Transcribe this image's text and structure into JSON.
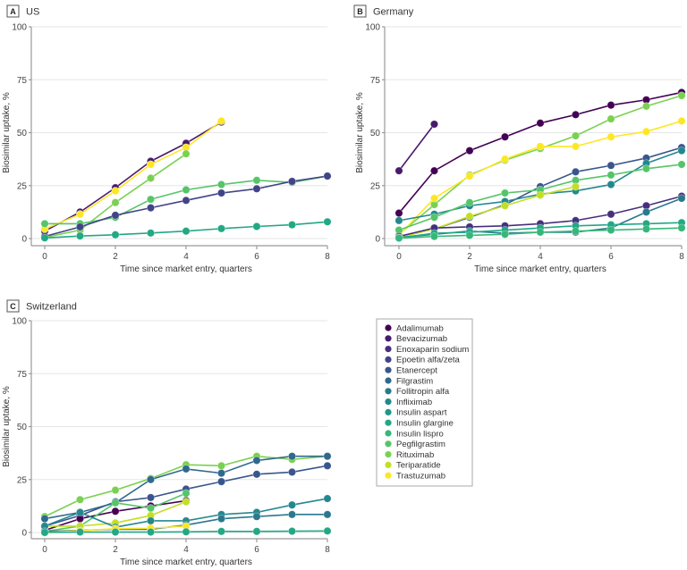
{
  "figure": {
    "legend_entries": [
      {
        "name": "Adalimumab",
        "color": "#440154"
      },
      {
        "name": "Bevacizumab",
        "color": "#481a6c"
      },
      {
        "name": "Enoxaparin sodium",
        "color": "#472f7d"
      },
      {
        "name": "Epoetin alfa/zeta",
        "color": "#414487"
      },
      {
        "name": "Etanercept",
        "color": "#39568c"
      },
      {
        "name": "Filgrastim",
        "color": "#31688e"
      },
      {
        "name": "Follitropin alfa",
        "color": "#2a788e"
      },
      {
        "name": "Infliximab",
        "color": "#23888e"
      },
      {
        "name": "Insulin aspart",
        "color": "#1f988b"
      },
      {
        "name": "Insulin glargine",
        "color": "#22a884"
      },
      {
        "name": "Insulin lispro",
        "color": "#35b779"
      },
      {
        "name": "Pegfilgrastim",
        "color": "#54c568"
      },
      {
        "name": "Rituximab",
        "color": "#7ad151"
      },
      {
        "name": "Teriparatide",
        "color": "#c2df23"
      },
      {
        "name": "Trastuzumab",
        "color": "#fde725"
      }
    ]
  },
  "chart_data": [
    {
      "type": "line",
      "panel_letter": "A",
      "title": "US",
      "xlabel": "Time since market entry, quarters",
      "ylabel": "Biosimilar uptake, %",
      "xlim": [
        0,
        8
      ],
      "ylim": [
        0,
        100
      ],
      "xticks": [
        "0",
        "2",
        "4",
        "6",
        "8"
      ],
      "yticks": [
        "0",
        "25",
        "50",
        "75",
        "100"
      ],
      "grid": true,
      "series": [
        {
          "name": "Bevacizumab",
          "x": [
            0,
            1,
            2,
            3,
            4,
            5
          ],
          "values": [
            3.5,
            12.5,
            24,
            36.5,
            45,
            55
          ]
        },
        {
          "name": "Trastuzumab",
          "x": [
            0,
            1,
            2,
            3,
            4,
            5
          ],
          "values": [
            4.5,
            11.5,
            22.5,
            35,
            43,
            55.5
          ]
        },
        {
          "name": "Rituximab",
          "x": [
            0,
            1,
            2,
            3,
            4
          ],
          "values": [
            0.5,
            4,
            17,
            28.5,
            40
          ]
        },
        {
          "name": "Pegfilgrastim",
          "x": [
            0,
            1,
            2,
            3,
            4,
            5,
            6,
            7,
            8
          ],
          "values": [
            7,
            7,
            10,
            18.5,
            23,
            25.5,
            27.5,
            26.5,
            29.5
          ]
        },
        {
          "name": "Epoetin alfa/zeta",
          "x": [
            0,
            1,
            2,
            3,
            4,
            5,
            6,
            7,
            8
          ],
          "values": [
            1,
            5.5,
            11,
            14.5,
            18,
            21.5,
            23.5,
            27,
            29.5
          ]
        },
        {
          "name": "Insulin glargine",
          "x": [
            0,
            1,
            2,
            3,
            4,
            5,
            6,
            7,
            8
          ],
          "values": [
            0.3,
            1.2,
            1.8,
            2.6,
            3.5,
            4.7,
            5.7,
            6.5,
            7.9
          ]
        }
      ]
    },
    {
      "type": "line",
      "panel_letter": "B",
      "title": "Germany",
      "xlabel": "Time since market entry, quarters",
      "ylabel": "Biosimilar uptake, %",
      "xlim": [
        0,
        8
      ],
      "ylim": [
        0,
        100
      ],
      "xticks": [
        "0",
        "2",
        "4",
        "6",
        "8"
      ],
      "yticks": [
        "0",
        "25",
        "50",
        "75",
        "100"
      ],
      "grid": true,
      "series": [
        {
          "name": "Adalimumab",
          "x": [
            0,
            1,
            2,
            3,
            4,
            5,
            6,
            7,
            8
          ],
          "values": [
            12,
            32,
            41.5,
            48,
            54.5,
            58.5,
            63,
            65.5,
            69
          ]
        },
        {
          "name": "Bevacizumab",
          "x": [
            0,
            1
          ],
          "values": [
            32,
            54
          ]
        },
        {
          "name": "Rituximab",
          "x": [
            0,
            1,
            2,
            3,
            4,
            5,
            6,
            7,
            8
          ],
          "values": [
            2,
            16,
            30,
            37,
            42.5,
            48.5,
            56.5,
            62.5,
            67.5
          ]
        },
        {
          "name": "Trastuzumab",
          "x": [
            0,
            1,
            2,
            3,
            4,
            5,
            6,
            7,
            8
          ],
          "values": [
            1.5,
            19,
            29.5,
            37.5,
            43.5,
            43.5,
            48,
            50.5,
            55.5
          ]
        },
        {
          "name": "Etanercept",
          "x": [
            0,
            1,
            2,
            3,
            4,
            5,
            6,
            7,
            8
          ],
          "values": [
            1,
            4.5,
            10,
            16,
            24.5,
            31.5,
            34.5,
            38,
            43
          ]
        },
        {
          "name": "Infliximab",
          "x": [
            0,
            1,
            2,
            3,
            4,
            5,
            6,
            7,
            8
          ],
          "values": [
            8.5,
            11.5,
            15.5,
            17.5,
            21,
            22.5,
            25.5,
            35.5,
            41.5
          ]
        },
        {
          "name": "Pegfilgrastim",
          "x": [
            0,
            1,
            2,
            3,
            4,
            5,
            6,
            7,
            8
          ],
          "values": [
            4,
            10,
            17,
            21.5,
            23,
            27.5,
            30,
            33,
            35
          ]
        },
        {
          "name": "Teriparatide",
          "x": [
            0,
            1,
            2,
            3,
            4,
            5
          ],
          "values": [
            0.5,
            4.5,
            10.5,
            15.5,
            20.5,
            24.5
          ]
        },
        {
          "name": "Enoxaparin sodium",
          "x": [
            0,
            1,
            2,
            3,
            4,
            5,
            6,
            7,
            8
          ],
          "values": [
            1,
            5,
            5.5,
            6,
            7,
            8.5,
            11.5,
            15.5,
            20
          ]
        },
        {
          "name": "Follitropin alfa",
          "x": [
            0,
            1,
            2,
            3,
            4,
            5,
            6,
            7,
            8
          ],
          "values": [
            0.5,
            2,
            3.5,
            2.5,
            3,
            3,
            5,
            12.5,
            19
          ]
        },
        {
          "name": "Insulin glargine",
          "x": [
            0,
            1,
            2,
            3,
            4,
            5,
            6,
            7,
            8
          ],
          "values": [
            0.3,
            2.5,
            3,
            4,
            5,
            6,
            6.5,
            7,
            7.5
          ]
        },
        {
          "name": "Insulin lispro",
          "x": [
            0,
            1,
            2,
            3,
            4,
            5,
            6,
            7,
            8
          ],
          "values": [
            0.2,
            1,
            1.5,
            2,
            3,
            3.5,
            4,
            4.5,
            5
          ]
        }
      ]
    },
    {
      "type": "line",
      "panel_letter": "C",
      "title": "Switzerland",
      "xlabel": "Time since market entry, quarters",
      "ylabel": "Biosimilar uptake, %",
      "xlim": [
        0,
        8
      ],
      "ylim": [
        0,
        100
      ],
      "xticks": [
        "0",
        "2",
        "4",
        "6",
        "8"
      ],
      "yticks": [
        "0",
        "25",
        "50",
        "75",
        "100"
      ],
      "grid": true,
      "series": [
        {
          "name": "Rituximab",
          "x": [
            0,
            1,
            2,
            3,
            4,
            5,
            6,
            7,
            8
          ],
          "values": [
            7.5,
            15.5,
            20,
            25.5,
            32,
            31.5,
            36,
            34.5,
            36
          ]
        },
        {
          "name": "Etanercept",
          "x": [
            0,
            1,
            2,
            3,
            4,
            5,
            6,
            7,
            8
          ],
          "values": [
            3,
            8,
            14.5,
            16.5,
            20.5,
            24,
            27.5,
            28.5,
            31.5
          ]
        },
        {
          "name": "Filgrastim",
          "x": [
            0,
            1,
            2,
            3,
            4,
            5,
            6,
            7,
            8
          ],
          "values": [
            6.5,
            9.5,
            14,
            25,
            30,
            28,
            34,
            36,
            36
          ]
        },
        {
          "name": "Adalimumab",
          "x": [
            0,
            1,
            2,
            3,
            4
          ],
          "values": [
            1,
            6.5,
            10,
            12.5,
            15
          ]
        },
        {
          "name": "Pegfilgrastim",
          "x": [
            0,
            1,
            2,
            3,
            4
          ],
          "values": [
            0.5,
            3,
            14,
            11.5,
            18.5
          ]
        },
        {
          "name": "Teriparatide",
          "x": [
            0,
            1,
            2,
            3,
            4
          ],
          "values": [
            3,
            3,
            4.5,
            8,
            14.5
          ]
        },
        {
          "name": "Infliximab",
          "x": [
            0,
            1,
            2,
            3,
            4,
            5,
            6,
            7,
            8
          ],
          "values": [
            3,
            9.5,
            2.5,
            5.5,
            5.5,
            8.5,
            9.5,
            13,
            16
          ]
        },
        {
          "name": "Follitropin alfa",
          "x": [
            0,
            1,
            2,
            3,
            4,
            5,
            6,
            7,
            8
          ],
          "values": [
            0.5,
            1,
            1.5,
            1.5,
            3.5,
            6.5,
            7.5,
            8.5,
            8.5
          ]
        },
        {
          "name": "Trastuzumab",
          "x": [
            0,
            1,
            2,
            3,
            4
          ],
          "values": [
            0,
            0.8,
            1.8,
            2,
            3
          ]
        },
        {
          "name": "Insulin glargine",
          "x": [
            0,
            1,
            2,
            3,
            4,
            5,
            6,
            7,
            8
          ],
          "values": [
            0,
            0.2,
            0.2,
            0.2,
            0.3,
            0.5,
            0.5,
            0.6,
            0.7
          ]
        }
      ]
    }
  ]
}
